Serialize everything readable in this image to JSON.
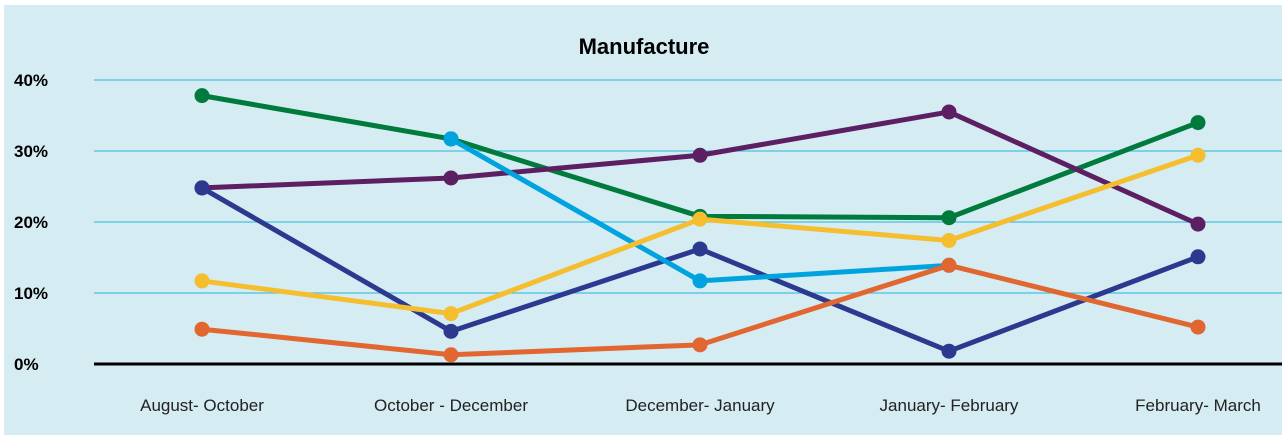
{
  "chart_data": {
    "type": "line",
    "title": "Manufacture",
    "xlabel": "",
    "ylabel": "",
    "categories": [
      "August- October",
      "October - December",
      "December- January",
      "January- February",
      "February- March"
    ],
    "ylim": [
      0,
      40
    ],
    "yticks": [
      0,
      10,
      20,
      30,
      40
    ],
    "ytick_labels": [
      "0%",
      "10%",
      "20%",
      "30%",
      "40%"
    ],
    "grid": true,
    "legend": "none",
    "series": [
      {
        "color": "#007a3d",
        "values": [
          37.8,
          31.7,
          20.8,
          20.6,
          34.0
        ]
      },
      {
        "color": "#5c1f62",
        "values": [
          24.8,
          26.2,
          29.4,
          35.5,
          19.7
        ]
      },
      {
        "color": "#2b3a8f",
        "values": [
          24.8,
          4.6,
          16.2,
          1.8,
          15.1
        ]
      },
      {
        "color": "#00a3dd",
        "values": [
          null,
          31.7,
          11.7,
          13.9,
          null
        ]
      },
      {
        "color": "#f5be2e",
        "values": [
          11.7,
          7.1,
          20.4,
          17.4,
          29.4
        ]
      },
      {
        "color": "#e1662f",
        "values": [
          4.9,
          1.3,
          2.7,
          13.9,
          5.2
        ]
      }
    ]
  },
  "colors": {
    "background": "#d5ecf3",
    "gridline": "#4bbfe0",
    "baseline": "#000000"
  }
}
